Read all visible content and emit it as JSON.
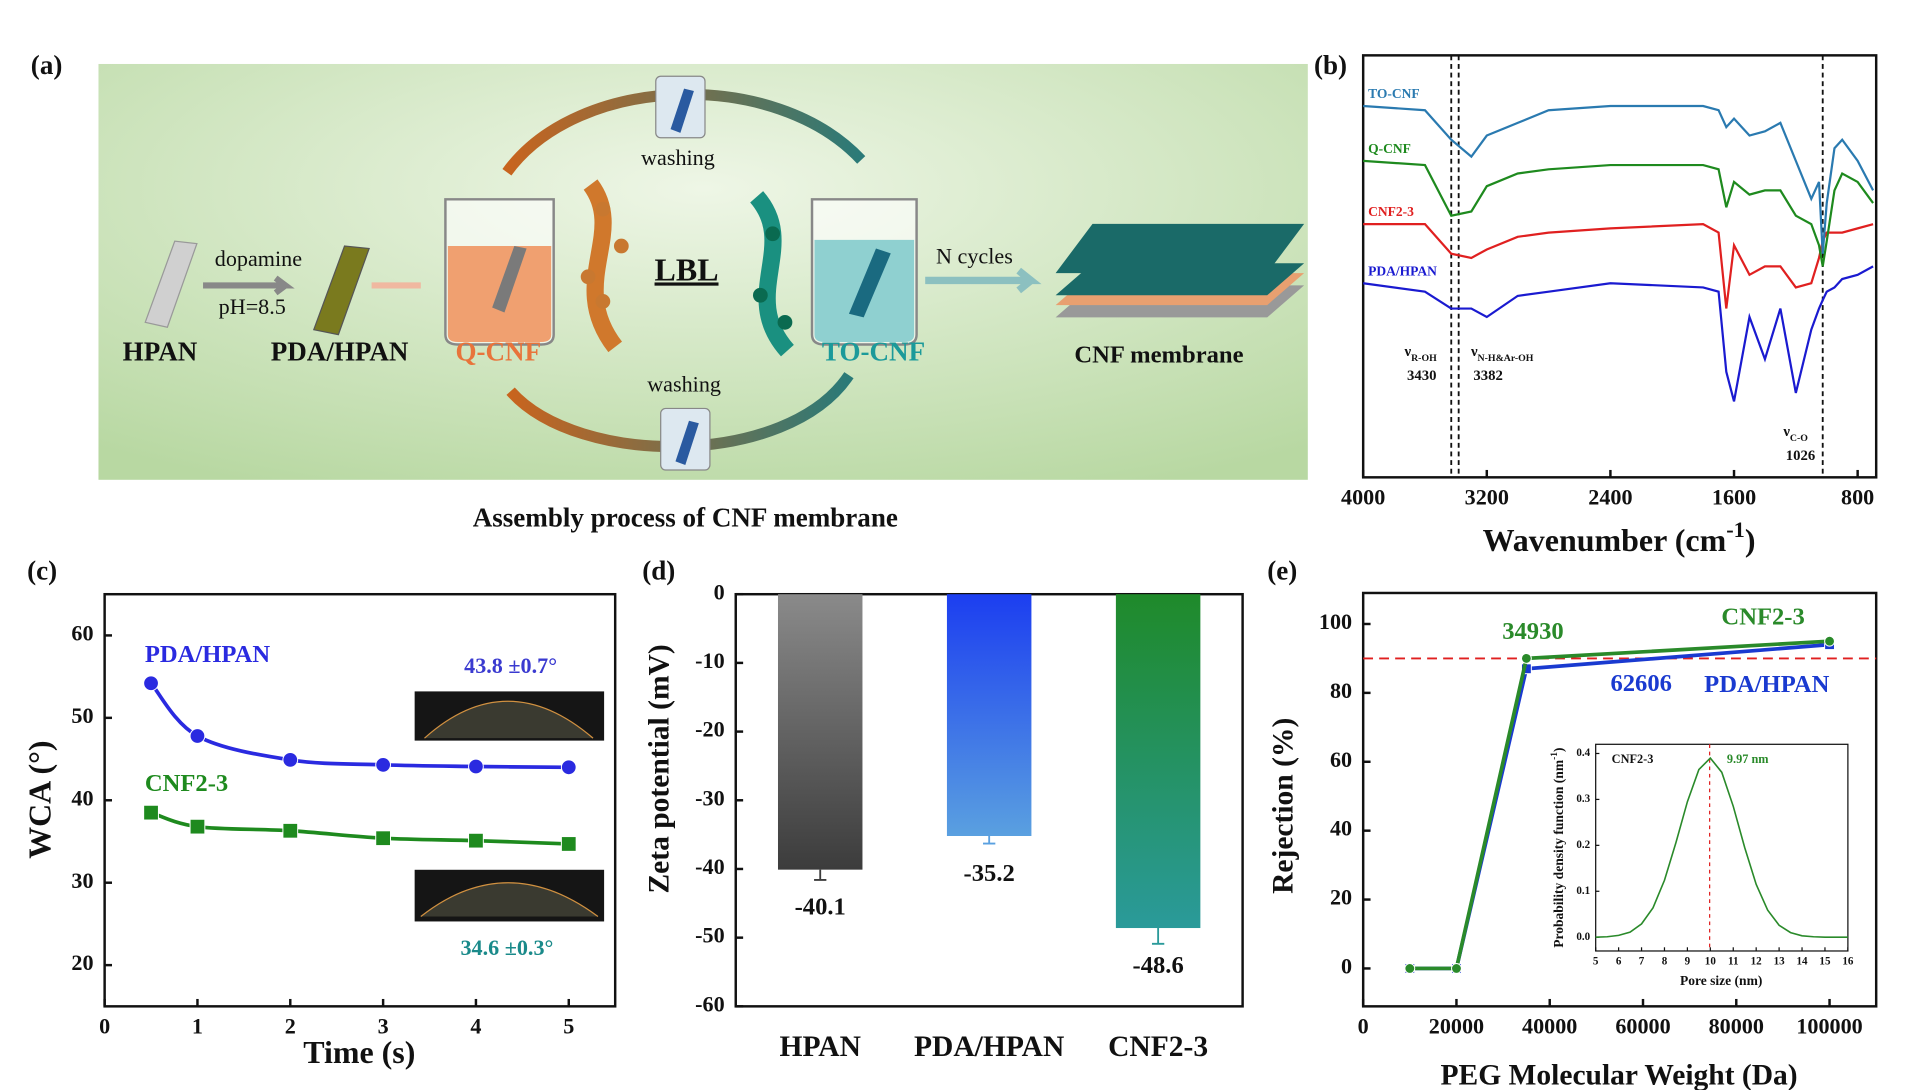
{
  "diagram": {
    "panel": "(a)",
    "steps": [
      "HPAN",
      "PDA/HPAN",
      "Q-CNF",
      "TO-CNF",
      "CNF membrane"
    ],
    "reagent": "dopamine",
    "condition": "pH=8.5",
    "method": "LBL",
    "washing": [
      "washing",
      "washing"
    ],
    "repeat": "N cycles",
    "caption": "Assembly process of CNF membrane"
  },
  "chart_data": [
    {
      "panel": "(b)",
      "type": "line",
      "x": [
        4000,
        3600,
        3430,
        3300,
        3200,
        3000,
        2800,
        2400,
        1800,
        1700,
        1650,
        1600,
        1500,
        1400,
        1300,
        1200,
        1100,
        1050,
        1026,
        1000,
        950,
        900,
        800,
        700
      ],
      "xlim": [
        4000,
        680
      ],
      "xticks": [
        4000,
        3200,
        2400,
        1600,
        800
      ],
      "ylim": [
        0,
        100
      ],
      "xlabel": {
        "text": "Wavenumber (cm",
        "sup": "-1",
        "tail": ")"
      },
      "series": [
        {
          "name": "TO-CNF",
          "color": "#2a7ab0",
          "values": [
            88,
            87,
            80,
            76,
            81,
            84,
            87,
            88,
            88,
            87,
            83,
            85,
            81,
            82,
            84,
            75,
            66,
            70,
            53,
            65,
            78,
            80,
            75,
            68
          ]
        },
        {
          "name": "Q-CNF",
          "color": "#1e8a1e",
          "values": [
            75,
            74,
            62,
            63,
            69,
            72,
            73,
            74,
            74,
            73,
            64,
            70,
            67,
            68,
            68,
            62,
            60,
            55,
            50,
            56,
            68,
            72,
            70,
            65
          ]
        },
        {
          "name": "CNF2-3",
          "color": "#e02020",
          "values": [
            60,
            60,
            53,
            52,
            54,
            57,
            58,
            59,
            60,
            58,
            40,
            55,
            48,
            50,
            50,
            45,
            46,
            52,
            56,
            58,
            58,
            58,
            59,
            60
          ]
        },
        {
          "name": "PDA/HPAN",
          "color": "#1a1ad0",
          "values": [
            46,
            44,
            40,
            40,
            38,
            43,
            44,
            46,
            45,
            44,
            25,
            18,
            38,
            28,
            40,
            20,
            35,
            40,
            42,
            44,
            45,
            47,
            48,
            50
          ]
        }
      ],
      "annotations": [
        {
          "symbol": "ν",
          "sub": "R-OH",
          "value": 3430
        },
        {
          "symbol": "ν",
          "sub": "N-H&Ar-OH",
          "value": 3382
        },
        {
          "symbol": "ν",
          "sub": "C-O",
          "value": 1026
        }
      ]
    },
    {
      "panel": "(c)",
      "type": "line",
      "smooth": true,
      "x": [
        0.5,
        1,
        2,
        3,
        4,
        5
      ],
      "xlim": [
        0,
        5.5
      ],
      "xticks": [
        0,
        1,
        2,
        3,
        4,
        5
      ],
      "ylim": [
        15,
        65
      ],
      "yticks": [
        20,
        30,
        40,
        50,
        60
      ],
      "xlabel": "Time (s)",
      "ylabel": "WCA (°)",
      "series": [
        {
          "name": "PDA/HPAN",
          "color": "#2a2ae0",
          "marker": "circle",
          "values": [
            54.2,
            47.8,
            44.9,
            44.3,
            44.1,
            44.0
          ]
        },
        {
          "name": "CNF2-3",
          "color": "#1e8a1e",
          "marker": "square",
          "values": [
            38.5,
            36.8,
            36.3,
            35.4,
            35.1,
            34.7
          ]
        }
      ],
      "annotations": [
        {
          "text": "43.8 ±0.7°",
          "color": "#3a3ad0"
        },
        {
          "text": "34.6 ±0.3°",
          "color": "#1a8a8a"
        }
      ]
    },
    {
      "panel": "(d)",
      "type": "bar",
      "categories": [
        "HPAN",
        "PDA/HPAN",
        "CNF2-3"
      ],
      "values": [
        -40.1,
        -35.2,
        -48.6
      ],
      "errors": [
        1.5,
        1.1,
        2.3
      ],
      "colors": [
        [
          "#8a8a8a",
          "#3c3c3c"
        ],
        [
          "#1c3ef0",
          "#5aa0e0"
        ],
        [
          "#1f8a2a",
          "#2a9a9a"
        ]
      ],
      "ylim": [
        -60,
        0
      ],
      "yticks": [
        0,
        -10,
        -20,
        -30,
        -40,
        -50,
        -60
      ],
      "ylabel": "Zeta potential (mV)"
    },
    {
      "panel": "(e)",
      "type": "line",
      "x": [
        10000,
        20000,
        35000,
        100000
      ],
      "xlim": [
        0,
        110000
      ],
      "xticks": [
        0,
        20000,
        40000,
        60000,
        80000,
        100000
      ],
      "ylim": [
        -11,
        109
      ],
      "yticks": [
        0,
        20,
        40,
        60,
        80,
        100
      ],
      "xlabel": "PEG Molecular Weight (Da)",
      "ylabel": "Rejection (%)",
      "reference_line": {
        "value": 90,
        "color": "#e02020"
      },
      "series": [
        {
          "name": "CNF2-3",
          "color": "#2a8a2a",
          "marker": "circle",
          "values": [
            0,
            0,
            90,
            95
          ]
        },
        {
          "name": "PDA/HPAN",
          "color": "#1a3ad0",
          "marker": "square",
          "values": [
            0,
            0,
            87,
            94
          ]
        }
      ],
      "mwco_labels": [
        {
          "value": 34930,
          "color": "#2a8a2a"
        },
        {
          "value": 62606,
          "color": "#1a3ad0"
        }
      ]
    },
    {
      "title": "CNF2-3",
      "type": "line",
      "x": [
        5,
        5.5,
        6,
        6.5,
        7,
        7.5,
        8,
        8.5,
        9,
        9.5,
        10,
        10.5,
        11,
        11.5,
        12,
        12.5,
        13,
        13.5,
        14,
        14.5,
        15,
        15.5,
        16
      ],
      "xlim": [
        5,
        16
      ],
      "xticks": [
        5,
        6,
        7,
        8,
        9,
        10,
        11,
        12,
        13,
        14,
        15,
        16
      ],
      "ylim": [
        -0.03,
        0.42
      ],
      "yticks": [
        {
          "value": 0,
          "label": "0.0"
        },
        0.1,
        0.2,
        0.3,
        0.4
      ],
      "xlabel": "Pore size (nm)",
      "ylabel": {
        "text": "Probability density function (nm",
        "sup": "-1",
        "tail": ")"
      },
      "series": [
        {
          "color": "#2a8a2a",
          "values": [
            0,
            0.001,
            0.004,
            0.011,
            0.029,
            0.064,
            0.124,
            0.206,
            0.295,
            0.365,
            0.39,
            0.359,
            0.285,
            0.195,
            0.115,
            0.059,
            0.026,
            0.01,
            0.003,
            0.001,
            0,
            0,
            0
          ]
        }
      ],
      "peak": {
        "value": 9.97,
        "label": "9.97 nm",
        "color": "#e02020"
      }
    }
  ]
}
